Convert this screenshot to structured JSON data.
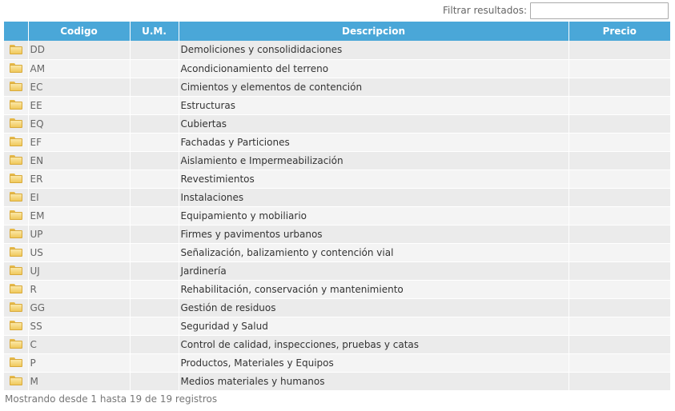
{
  "filter": {
    "label": "Filtrar resultados:",
    "value": ""
  },
  "table": {
    "columns": [
      {
        "key": "icon",
        "label": ""
      },
      {
        "key": "codigo",
        "label": "Codigo"
      },
      {
        "key": "um",
        "label": "U.M."
      },
      {
        "key": "descripcion",
        "label": "Descripcion"
      },
      {
        "key": "precio",
        "label": "Precio"
      }
    ],
    "rows": [
      {
        "icon": "folder-icon",
        "codigo": "DD",
        "um": "",
        "descripcion": "Demoliciones y consolididaciones",
        "precio": ""
      },
      {
        "icon": "folder-icon",
        "codigo": "AM",
        "um": "",
        "descripcion": "Acondicionamiento del terreno",
        "precio": ""
      },
      {
        "icon": "folder-icon",
        "codigo": "EC",
        "um": "",
        "descripcion": "Cimientos y elementos de contención",
        "precio": ""
      },
      {
        "icon": "folder-icon",
        "codigo": "EE",
        "um": "",
        "descripcion": "Estructuras",
        "precio": ""
      },
      {
        "icon": "folder-icon",
        "codigo": "EQ",
        "um": "",
        "descripcion": "Cubiertas",
        "precio": ""
      },
      {
        "icon": "folder-icon",
        "codigo": "EF",
        "um": "",
        "descripcion": "Fachadas y Particiones",
        "precio": ""
      },
      {
        "icon": "folder-icon",
        "codigo": "EN",
        "um": "",
        "descripcion": "Aislamiento e Impermeabilización",
        "precio": ""
      },
      {
        "icon": "folder-icon",
        "codigo": "ER",
        "um": "",
        "descripcion": "Revestimientos",
        "precio": ""
      },
      {
        "icon": "folder-icon",
        "codigo": "EI",
        "um": "",
        "descripcion": "Instalaciones",
        "precio": ""
      },
      {
        "icon": "folder-icon",
        "codigo": "EM",
        "um": "",
        "descripcion": "Equipamiento y mobiliario",
        "precio": ""
      },
      {
        "icon": "folder-icon",
        "codigo": "UP",
        "um": "",
        "descripcion": "Firmes y pavimentos urbanos",
        "precio": ""
      },
      {
        "icon": "folder-icon",
        "codigo": "US",
        "um": "",
        "descripcion": "Señalización, balizamiento y contención vial",
        "precio": ""
      },
      {
        "icon": "folder-icon",
        "codigo": "UJ",
        "um": "",
        "descripcion": "Jardinería",
        "precio": ""
      },
      {
        "icon": "folder-icon",
        "codigo": "R",
        "um": "",
        "descripcion": "Rehabilitación, conservación y mantenimiento",
        "precio": ""
      },
      {
        "icon": "folder-icon",
        "codigo": "GG",
        "um": "",
        "descripcion": "Gestión de residuos",
        "precio": ""
      },
      {
        "icon": "folder-icon",
        "codigo": "SS",
        "um": "",
        "descripcion": "Seguridad y Salud",
        "precio": ""
      },
      {
        "icon": "folder-icon",
        "codigo": "C",
        "um": "",
        "descripcion": "Control de calidad, inspecciones, pruebas y catas",
        "precio": ""
      },
      {
        "icon": "folder-icon",
        "codigo": "P",
        "um": "",
        "descripcion": "Productos, Materiales y Equipos",
        "precio": ""
      },
      {
        "icon": "folder-icon",
        "codigo": "M",
        "um": "",
        "descripcion": "Medios materiales y humanos",
        "precio": ""
      }
    ]
  },
  "footer": {
    "info": "Mostrando desde 1 hasta 19 de 19 registros"
  },
  "colors": {
    "header_bg": "#4aa7d8",
    "row_odd": "#ebebeb",
    "row_even": "#f4f4f4",
    "folder": "#f0c95c"
  }
}
